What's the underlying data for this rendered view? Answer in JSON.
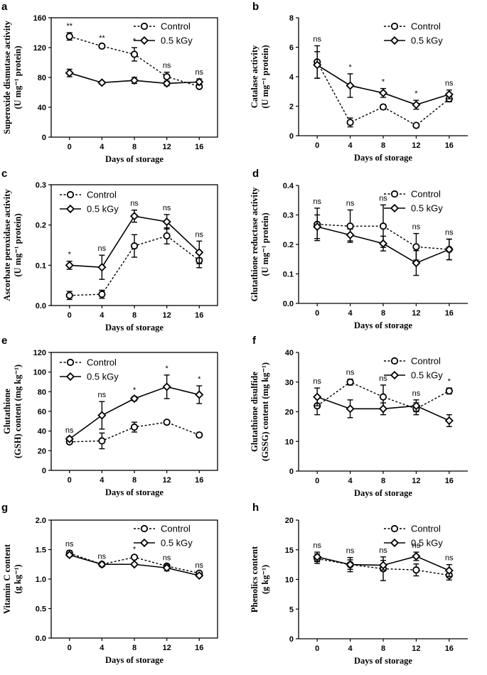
{
  "figure": {
    "legend": {
      "control": "Control",
      "treated": "0.5 kGy"
    }
  },
  "chart_data": [
    {
      "panel": "a",
      "type": "line",
      "x": [
        0,
        4,
        8,
        12,
        16
      ],
      "xticks": [
        "0",
        "4",
        "8",
        "12",
        "16"
      ],
      "xlabel": "Days of storage",
      "ylabel_lines": [
        "Superoxide dismutase activity",
        "(U mg⁻¹ protein)"
      ],
      "ylim": [
        0,
        160
      ],
      "yticks": [
        0,
        40,
        80,
        120,
        160
      ],
      "ytick_labels": [
        "0",
        "40",
        "80",
        "120",
        "160"
      ],
      "series": [
        {
          "name": "Control",
          "values": [
            135,
            122,
            111,
            81,
            68
          ],
          "errors": [
            5,
            2,
            9,
            6,
            2
          ]
        },
        {
          "name": "0.5 kGy",
          "values": [
            86,
            73,
            76,
            72,
            74
          ],
          "errors": [
            5,
            2,
            4,
            3,
            4
          ]
        }
      ],
      "significance": [
        "**",
        "**",
        "*",
        "ns",
        "ns"
      ],
      "legend_pos": "top-right"
    },
    {
      "panel": "b",
      "type": "line",
      "x": [
        0,
        4,
        8,
        12,
        16
      ],
      "xticks": [
        "0",
        "4",
        "8",
        "12",
        "16"
      ],
      "xlabel": "Days of storage",
      "ylabel_lines": [
        "Catalase activity",
        "(U mg⁻¹ protein)"
      ],
      "ylim": [
        0,
        8
      ],
      "yticks": [
        0,
        2,
        4,
        6,
        8
      ],
      "ytick_labels": [
        "0",
        "2",
        "4",
        "6",
        "8"
      ],
      "series": [
        {
          "name": "Control",
          "values": [
            5.0,
            0.9,
            1.95,
            0.7,
            2.5
          ],
          "errors": [
            1.1,
            0.3,
            0.15,
            0.1,
            0.2
          ]
        },
        {
          "name": "0.5 kGy",
          "values": [
            4.8,
            3.4,
            2.9,
            2.1,
            2.8
          ],
          "errors": [
            0.9,
            0.8,
            0.3,
            0.3,
            0.3
          ]
        }
      ],
      "significance": [
        "ns",
        "*",
        "*",
        "*",
        "ns"
      ],
      "legend_pos": "top-right"
    },
    {
      "panel": "c",
      "type": "line",
      "x": [
        0,
        4,
        8,
        12,
        16
      ],
      "xticks": [
        "0",
        "4",
        "8",
        "12",
        "16"
      ],
      "xlabel": "Days of storage",
      "ylabel_lines": [
        "Ascorbate peroxidase activity",
        "(U mg⁻¹ protein)"
      ],
      "ylim": [
        0,
        0.3
      ],
      "yticks": [
        0,
        0.1,
        0.2,
        0.3
      ],
      "ytick_labels": [
        "0.0",
        "0.1",
        "0.2",
        "0.3"
      ],
      "series": [
        {
          "name": "Control",
          "values": [
            0.025,
            0.028,
            0.148,
            0.173,
            0.112
          ],
          "errors": [
            0.01,
            0.01,
            0.028,
            0.02,
            0.018
          ]
        },
        {
          "name": "0.5 kGy",
          "values": [
            0.1,
            0.095,
            0.222,
            0.208,
            0.132
          ],
          "errors": [
            0.01,
            0.03,
            0.015,
            0.018,
            0.028
          ]
        }
      ],
      "significance": [
        "*",
        "ns",
        "ns",
        "ns",
        "ns"
      ],
      "legend_pos": "top-left"
    },
    {
      "panel": "d",
      "type": "line",
      "x": [
        0,
        4,
        8,
        12,
        16
      ],
      "xticks": [
        "0",
        "4",
        "8",
        "12",
        "16"
      ],
      "xlabel": "Days of storage",
      "ylabel_lines": [
        "Glutathione  reductase activity",
        "(U mg⁻¹ protein)"
      ],
      "ylim": [
        0,
        0.4
      ],
      "yticks": [
        0,
        0.1,
        0.2,
        0.3,
        0.4
      ],
      "ytick_labels": [
        "0.0",
        "0.1",
        "0.2",
        "0.3",
        "0.4"
      ],
      "series": [
        {
          "name": "Control",
          "values": [
            0.268,
            0.262,
            0.262,
            0.192,
            0.183
          ],
          "errors": [
            0.055,
            0.055,
            0.072,
            0.045,
            0.035
          ]
        },
        {
          "name": "0.5 kGy",
          "values": [
            0.26,
            0.232,
            0.203,
            0.137,
            0.183
          ],
          "errors": [
            0.04,
            0.02,
            0.025,
            0.042,
            0.035
          ]
        }
      ],
      "significance": [
        "ns",
        "ns",
        "ns",
        "ns",
        "ns"
      ],
      "legend_pos": "top-right"
    },
    {
      "panel": "e",
      "type": "line",
      "x": [
        0,
        4,
        8,
        12,
        16
      ],
      "xticks": [
        "0",
        "4",
        "8",
        "12",
        "16"
      ],
      "xlabel": "Days of storage",
      "ylabel_lines": [
        "Glutathione",
        "(GSH) content (mg kg⁻¹)"
      ],
      "ylim": [
        0,
        120
      ],
      "yticks": [
        0,
        20,
        40,
        60,
        80,
        100,
        120
      ],
      "ytick_labels": [
        "0",
        "20",
        "40",
        "60",
        "80",
        "100",
        "120"
      ],
      "series": [
        {
          "name": "Control",
          "values": [
            29,
            30,
            44,
            49,
            36
          ],
          "errors": [
            2,
            8,
            5,
            1.5,
            2
          ]
        },
        {
          "name": "0.5 kGy",
          "values": [
            32,
            56,
            73,
            85,
            77
          ],
          "errors": [
            2,
            14,
            2,
            12,
            9
          ]
        }
      ],
      "significance": [
        "ns",
        "ns",
        "*",
        "*",
        "*"
      ],
      "legend_pos": "top-left"
    },
    {
      "panel": "f",
      "type": "line",
      "x": [
        0,
        4,
        8,
        12,
        16
      ],
      "xticks": [
        "0",
        "4",
        "8",
        "12",
        "16"
      ],
      "xlabel": "Days of storage",
      "ylabel_lines": [
        "Glutathione disulfide",
        "(GSSG) content (mg kg⁻¹)"
      ],
      "ylim": [
        0,
        40
      ],
      "yticks": [
        0,
        10,
        20,
        30,
        40
      ],
      "ytick_labels": [
        "0",
        "10",
        "20",
        "30",
        "40"
      ],
      "series": [
        {
          "name": "Control",
          "values": [
            22,
            30,
            25,
            21,
            27
          ],
          "errors": [
            3,
            1,
            4,
            2,
            1
          ]
        },
        {
          "name": "0.5 kGy",
          "values": [
            25,
            21,
            21,
            22,
            17
          ],
          "errors": [
            3,
            3,
            2,
            2,
            2
          ]
        }
      ],
      "significance": [
        "ns",
        "ns",
        "ns",
        "ns",
        "*"
      ],
      "legend_pos": "top-right"
    },
    {
      "panel": "g",
      "type": "line",
      "x": [
        0,
        4,
        8,
        12,
        16
      ],
      "xticks": [
        "0",
        "4",
        "8",
        "12",
        "16"
      ],
      "xlabel": "Days of storage",
      "ylabel_lines": [
        "Vitamin C content",
        "(g kg⁻¹)"
      ],
      "ylim": [
        0,
        2
      ],
      "yticks": [
        0,
        0.5,
        1,
        1.5,
        2
      ],
      "ytick_labels": [
        "0.0",
        "0.5",
        "1.0",
        "1.5",
        "2.0"
      ],
      "series": [
        {
          "name": "Control",
          "values": [
            1.44,
            1.25,
            1.37,
            1.22,
            1.1
          ],
          "errors": [
            0.04,
            0.02,
            0.02,
            0.03,
            0.02
          ]
        },
        {
          "name": "0.5 kGy",
          "values": [
            1.41,
            1.25,
            1.25,
            1.19,
            1.06
          ],
          "errors": [
            0.03,
            0.02,
            0.02,
            0.05,
            0.02
          ]
        }
      ],
      "significance": [
        "ns",
        "ns",
        "*",
        "ns",
        "ns"
      ],
      "legend_pos": "top-right"
    },
    {
      "panel": "h",
      "type": "line",
      "x": [
        0,
        4,
        8,
        12,
        16
      ],
      "xticks": [
        "0",
        "4",
        "8",
        "12",
        "16"
      ],
      "xlabel": "Days of storage",
      "ylabel_lines": [
        "Phenolics content",
        "(g kg⁻¹)"
      ],
      "ylim": [
        0,
        20
      ],
      "yticks": [
        0,
        5,
        10,
        15,
        20
      ],
      "ytick_labels": [
        "0",
        "5",
        "10",
        "15",
        "20"
      ],
      "series": [
        {
          "name": "Control",
          "values": [
            13.5,
            12.5,
            11.8,
            11.6,
            10.7
          ],
          "errors": [
            0.8,
            1.2,
            2.0,
            1.0,
            0.8
          ]
        },
        {
          "name": "0.5 kGy",
          "values": [
            13.8,
            12.5,
            12.4,
            13.9,
            11.5
          ],
          "errors": [
            0.8,
            0.8,
            0.8,
            0.7,
            1.0
          ]
        }
      ],
      "significance": [
        "ns",
        "ns",
        "ns",
        "ns",
        "ns"
      ],
      "legend_pos": "top-right"
    }
  ]
}
